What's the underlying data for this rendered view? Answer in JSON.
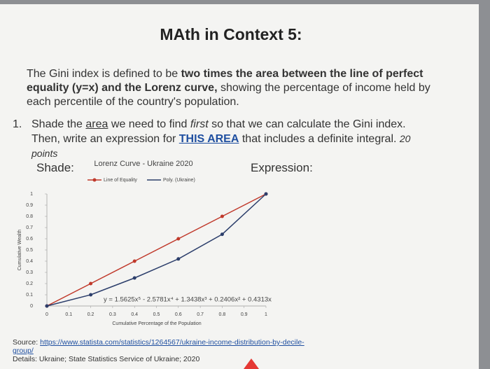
{
  "title": "MAth in Context 5:",
  "intro": {
    "text_1": "The Gini index is defined to be ",
    "bold": "two times the area between the line of perfect equality (y=x) and the Lorenz curve,",
    "text_2": " showing the percentage of income held by each percentile of the country's population."
  },
  "question": {
    "number": "1.",
    "text_1": "Shade the ",
    "underline": "area",
    "text_2": " we need to find ",
    "italic": "first",
    "text_3": " so that we can calculate the Gini index. Then, write an expression for ",
    "highlight": "THIS AREA",
    "text_4": " that includes a definite integral. ",
    "points": "20 points"
  },
  "shade_label": "Shade:",
  "expression_label": "Expression:",
  "chart_data": {
    "type": "line",
    "title": "Lorenz Curve - Ukraine 2020",
    "x": [
      0,
      0.2,
      0.4,
      0.6,
      0.8,
      1
    ],
    "series": [
      {
        "name": "Line of Equality",
        "color": "#c0392b",
        "values": [
          0,
          0.2,
          0.4,
          0.6,
          0.8,
          1
        ]
      },
      {
        "name": "Poly. (Ukraine)",
        "color": "#2c3e6b",
        "values": [
          0,
          0.1,
          0.25,
          0.42,
          0.64,
          1
        ]
      }
    ],
    "xlim": [
      0,
      1
    ],
    "ylim": [
      0,
      1
    ],
    "xticks": [
      0,
      0.1,
      0.2,
      0.3,
      0.4,
      0.5,
      0.6,
      0.7,
      0.8,
      0.9,
      1
    ],
    "yticks": [
      0,
      0.1,
      0.2,
      0.3,
      0.4,
      0.5,
      0.6,
      0.7,
      0.8,
      0.9,
      1
    ],
    "x_label": "Cumulative Percentage of the Population",
    "y_label": "Cumulative Wealth",
    "annotation": "y = 1.5625x⁵ - 2.5781x⁴ + 1.3438x³ + 0.2406x² + 0.4313x"
  },
  "source": {
    "label": "Source: ",
    "url": "https://www.statista.com/statistics/1264567/ukraine-income-distribution-by-decile-group/",
    "details": "Details: Ukraine; State Statistics Service of Ukraine; 2020"
  }
}
